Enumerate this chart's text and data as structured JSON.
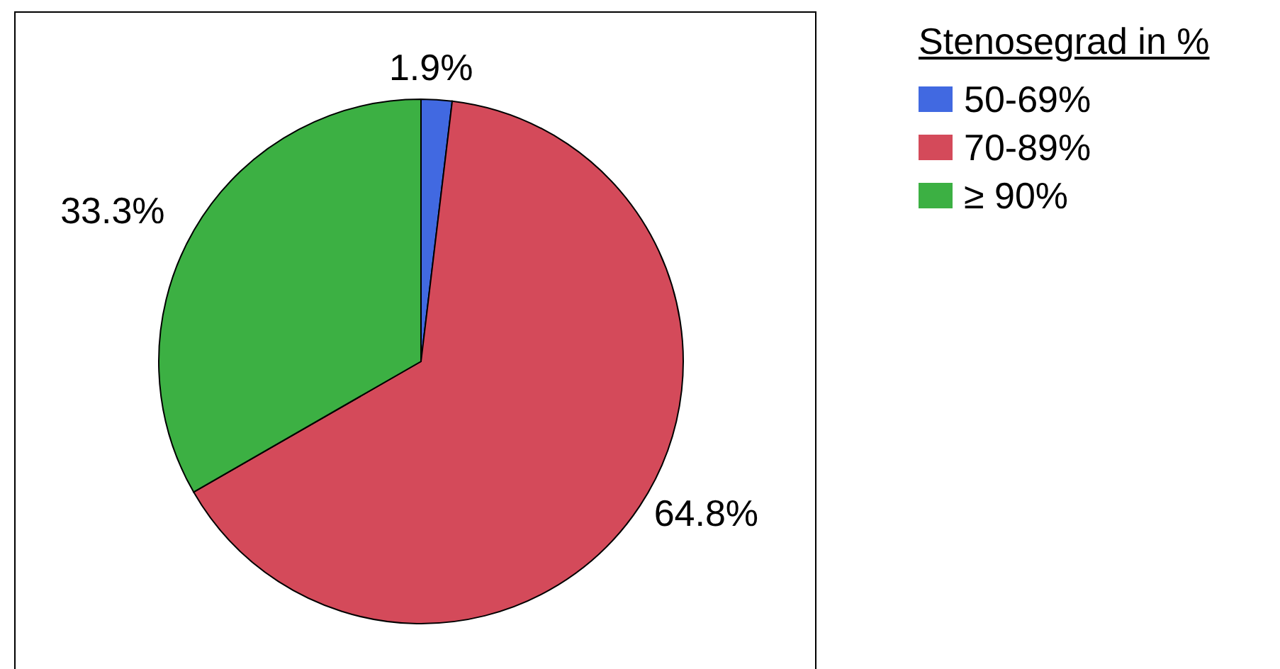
{
  "chart_data": {
    "type": "pie",
    "legend_title": "Stenosegrad in %",
    "legend": "top right",
    "categories": [
      "50-69%",
      "70-89%",
      "≥ 90%"
    ],
    "values": [
      1.9,
      64.8,
      33.3
    ],
    "colors": [
      "#4169e1",
      "#d44a5a",
      "#3cb043"
    ],
    "value_labels": [
      "1.9%",
      "64.8%",
      "33.3%"
    ]
  }
}
